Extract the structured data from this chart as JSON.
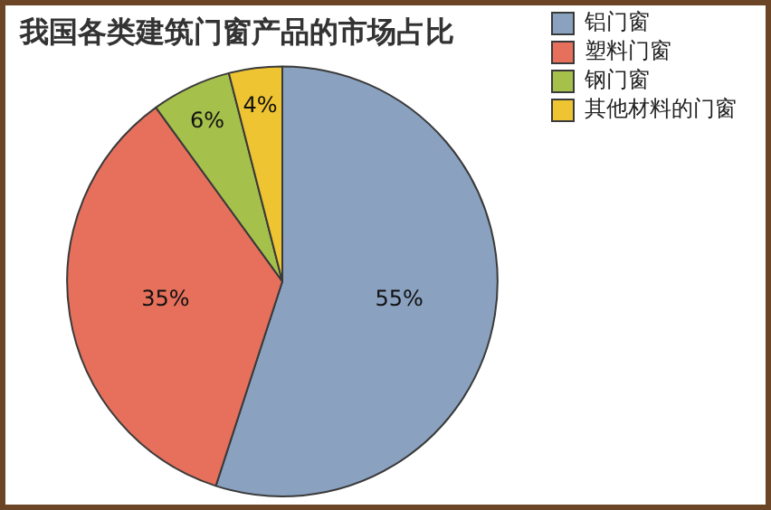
{
  "chart_data": {
    "type": "pie",
    "title": "我国各类建筑门窗产品的市场占比",
    "categories": [
      "铝门窗",
      "塑料门窗",
      "钢门窗",
      "其他材料的门窗"
    ],
    "values": [
      55,
      35,
      6,
      4
    ],
    "value_labels": [
      "55%",
      "35%",
      "6%",
      "4%"
    ],
    "colors": [
      "#8aa2c0",
      "#e6705c",
      "#a6c04c",
      "#eec432"
    ],
    "legend": "right"
  }
}
